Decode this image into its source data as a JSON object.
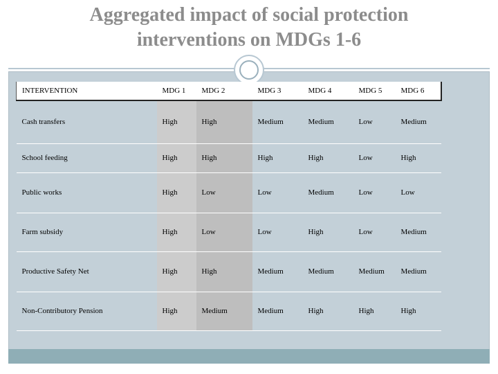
{
  "title": {
    "line1": "Aggregated impact of social protection",
    "line2": "interventions on MDGs 1-6"
  },
  "table": {
    "headers": [
      "INTERVENTION",
      "MDG 1",
      "MDG 2",
      "MDG 3",
      "MDG 4",
      "MDG 5",
      "MDG 6"
    ],
    "rows": [
      [
        "Cash transfers",
        "High",
        "High",
        "Medium",
        "Medium",
        "Low",
        "Medium"
      ],
      [
        "School feeding",
        "High",
        "High",
        "High",
        "High",
        "Low",
        "High"
      ],
      [
        "Public works",
        "High",
        "Low",
        "Low",
        "Medium",
        "Low",
        "Low"
      ],
      [
        "Farm subsidy",
        "High",
        "Low",
        "Low",
        "High",
        "Low",
        "Medium"
      ],
      [
        "Productive Safety Net",
        "High",
        "High",
        "Medium",
        "Medium",
        "Medium",
        "Medium"
      ],
      [
        "Non-Contributory Pension",
        "High",
        "Medium",
        "Medium",
        "High",
        "High",
        "High"
      ]
    ]
  },
  "colors": {
    "title": "#8c8c8c",
    "panel": "#c3d0d8",
    "footer_bar": "#8faeb6",
    "mdg1_column": "#cccccc",
    "mdg2_column": "#bebebe"
  }
}
